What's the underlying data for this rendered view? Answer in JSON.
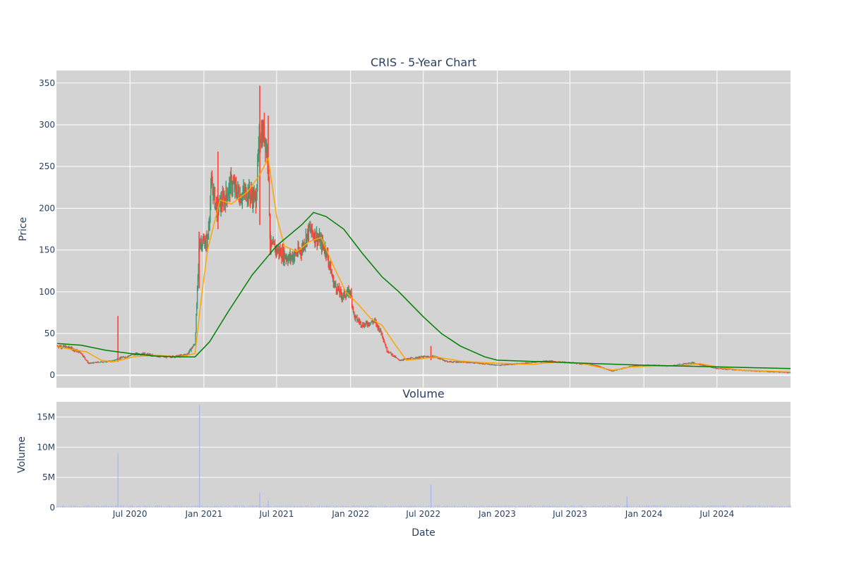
{
  "chart_data": {
    "type": "candlestick",
    "title": "CRIS - 5-Year Chart",
    "xlabel": "Date",
    "price_panel": {
      "ylabel": "Price",
      "ylim": [
        -15,
        365
      ],
      "yticks": [
        0,
        50,
        100,
        150,
        200,
        250,
        300,
        350
      ],
      "grid": true,
      "increasing_color": "#3d9970",
      "decreasing_color": "#ff4136",
      "background": "#d3d3d3",
      "approx_daily_closes": [
        [
          "2020-01-02",
          35
        ],
        [
          "2020-02-01",
          33
        ],
        [
          "2020-03-01",
          27
        ],
        [
          "2020-03-20",
          14
        ],
        [
          "2020-04-20",
          16
        ],
        [
          "2020-05-20",
          17
        ],
        [
          "2020-06-01",
          20
        ],
        [
          "2020-06-20",
          22
        ],
        [
          "2020-07-10",
          25
        ],
        [
          "2020-08-01",
          26
        ],
        [
          "2020-09-01",
          23
        ],
        [
          "2020-10-01",
          22
        ],
        [
          "2020-11-01",
          23
        ],
        [
          "2020-11-20",
          25
        ],
        [
          "2020-12-10",
          38
        ],
        [
          "2020-12-21",
          160
        ],
        [
          "2021-01-10",
          160
        ],
        [
          "2021-01-20",
          230
        ],
        [
          "2021-02-01",
          200
        ],
        [
          "2021-02-20",
          210
        ],
        [
          "2021-03-10",
          230
        ],
        [
          "2021-04-01",
          215
        ],
        [
          "2021-04-20",
          220
        ],
        [
          "2021-05-10",
          210
        ],
        [
          "2021-05-20",
          290
        ],
        [
          "2021-06-01",
          290
        ],
        [
          "2021-06-10",
          255
        ],
        [
          "2021-06-15",
          155
        ],
        [
          "2021-07-01",
          150
        ],
        [
          "2021-08-01",
          140
        ],
        [
          "2021-09-01",
          150
        ],
        [
          "2021-09-20",
          175
        ],
        [
          "2021-10-10",
          165
        ],
        [
          "2021-11-01",
          150
        ],
        [
          "2021-11-20",
          110
        ],
        [
          "2021-12-10",
          95
        ],
        [
          "2022-01-01",
          100
        ],
        [
          "2022-01-10",
          70
        ],
        [
          "2022-02-01",
          60
        ],
        [
          "2022-03-01",
          65
        ],
        [
          "2022-03-20",
          50
        ],
        [
          "2022-04-01",
          30
        ],
        [
          "2022-05-01",
          18
        ],
        [
          "2022-06-01",
          20
        ],
        [
          "2022-07-01",
          22
        ],
        [
          "2022-08-01",
          22
        ],
        [
          "2022-09-01",
          16
        ],
        [
          "2022-10-01",
          16
        ],
        [
          "2022-11-01",
          15
        ],
        [
          "2023-01-01",
          12
        ],
        [
          "2023-03-01",
          14
        ],
        [
          "2023-05-01",
          17
        ],
        [
          "2023-07-01",
          15
        ],
        [
          "2023-09-01",
          12
        ],
        [
          "2023-10-15",
          5
        ],
        [
          "2023-12-01",
          11
        ],
        [
          "2024-01-15",
          12
        ],
        [
          "2024-03-01",
          11
        ],
        [
          "2024-05-01",
          15
        ],
        [
          "2024-07-01",
          8
        ],
        [
          "2024-09-01",
          6
        ],
        [
          "2024-12-31",
          3
        ]
      ]
    },
    "moving_averages": [
      {
        "color": "#ffa500",
        "points": [
          [
            "2020-01-02",
            34
          ],
          [
            "2020-03-15",
            28
          ],
          [
            "2020-04-20",
            18
          ],
          [
            "2020-05-20",
            16
          ],
          [
            "2020-07-10",
            22
          ],
          [
            "2020-09-01",
            24
          ],
          [
            "2020-11-01",
            22
          ],
          [
            "2020-12-10",
            26
          ],
          [
            "2020-12-25",
            90
          ],
          [
            "2021-01-10",
            150
          ],
          [
            "2021-02-10",
            210
          ],
          [
            "2021-03-10",
            205
          ],
          [
            "2021-04-20",
            220
          ],
          [
            "2021-05-20",
            240
          ],
          [
            "2021-06-10",
            260
          ],
          [
            "2021-07-01",
            190
          ],
          [
            "2021-07-20",
            155
          ],
          [
            "2021-08-20",
            148
          ],
          [
            "2021-09-20",
            160
          ],
          [
            "2021-10-20",
            165
          ],
          [
            "2021-11-20",
            130
          ],
          [
            "2021-12-20",
            100
          ],
          [
            "2022-01-20",
            85
          ],
          [
            "2022-02-20",
            68
          ],
          [
            "2022-03-20",
            60
          ],
          [
            "2022-04-20",
            38
          ],
          [
            "2022-05-20",
            18
          ],
          [
            "2022-07-01",
            20
          ],
          [
            "2022-08-01",
            22
          ],
          [
            "2022-10-01",
            17
          ],
          [
            "2022-12-01",
            15
          ],
          [
            "2023-02-01",
            14
          ],
          [
            "2023-04-01",
            13
          ],
          [
            "2023-06-01",
            16
          ],
          [
            "2023-08-01",
            14
          ],
          [
            "2023-10-15",
            6
          ],
          [
            "2023-12-01",
            10
          ],
          [
            "2024-02-01",
            11
          ],
          [
            "2024-04-01",
            11
          ],
          [
            "2024-05-20",
            14
          ],
          [
            "2024-07-01",
            10
          ],
          [
            "2024-09-01",
            6
          ],
          [
            "2024-12-31",
            4
          ]
        ]
      },
      {
        "color": "#008000",
        "points": [
          [
            "2020-01-02",
            38
          ],
          [
            "2020-03-01",
            36
          ],
          [
            "2020-05-01",
            30
          ],
          [
            "2020-07-01",
            26
          ],
          [
            "2020-09-01",
            23
          ],
          [
            "2020-11-01",
            22
          ],
          [
            "2020-12-10",
            22
          ],
          [
            "2021-01-15",
            40
          ],
          [
            "2021-03-01",
            75
          ],
          [
            "2021-05-01",
            120
          ],
          [
            "2021-07-01",
            155
          ],
          [
            "2021-09-01",
            180
          ],
          [
            "2021-10-01",
            195
          ],
          [
            "2021-11-01",
            190
          ],
          [
            "2021-12-15",
            175
          ],
          [
            "2022-02-01",
            145
          ],
          [
            "2022-03-20",
            118
          ],
          [
            "2022-05-01",
            100
          ],
          [
            "2022-07-01",
            70
          ],
          [
            "2022-08-15",
            50
          ],
          [
            "2022-10-01",
            35
          ],
          [
            "2022-12-01",
            22
          ],
          [
            "2023-01-01",
            18
          ],
          [
            "2023-05-01",
            16
          ],
          [
            "2023-09-01",
            14
          ],
          [
            "2024-01-01",
            12
          ],
          [
            "2024-07-01",
            10
          ],
          [
            "2024-12-31",
            8
          ]
        ]
      }
    ],
    "volume_panel": {
      "title": "Volume",
      "ylabel": "Volume",
      "ylim": [
        0,
        17500000
      ],
      "yticks": [
        0,
        5000000,
        10000000,
        15000000
      ],
      "ytick_labels": [
        "0",
        "5M",
        "10M",
        "15M"
      ],
      "bar_color": "#aab4ee",
      "spikes": [
        [
          "2020-06-01",
          9000000
        ],
        [
          "2020-12-21",
          17000000
        ],
        [
          "2021-05-20",
          2500000
        ],
        [
          "2021-06-10",
          1200000
        ],
        [
          "2022-07-20",
          3800000
        ],
        [
          "2023-11-20",
          1800000
        ]
      ],
      "baseline": 300000
    },
    "x_range": [
      "2019-12-31",
      "2024-12-31"
    ],
    "xticks": [
      "2020-07-01",
      "2021-01-01",
      "2021-07-01",
      "2022-01-01",
      "2022-07-01",
      "2023-01-01",
      "2023-07-01",
      "2024-01-01",
      "2024-07-01"
    ],
    "xtick_labels": [
      "Jul 2020",
      "Jan 2021",
      "Jul 2021",
      "Jan 2022",
      "Jul 2022",
      "Jan 2023",
      "Jul 2023",
      "Jan 2024",
      "Jul 2024"
    ]
  }
}
